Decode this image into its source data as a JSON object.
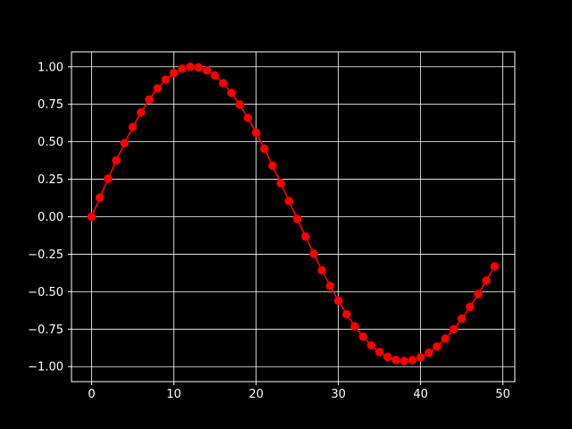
{
  "chart_data": {
    "type": "line",
    "title": "",
    "xlabel": "",
    "ylabel": "",
    "xlim": [
      -2.45,
      51.45
    ],
    "ylim": [
      -1.1,
      1.1
    ],
    "grid": true,
    "x_ticks": [
      0,
      10,
      20,
      30,
      40,
      50
    ],
    "x_tick_labels": [
      "0",
      "10",
      "20",
      "30",
      "40",
      "50"
    ],
    "y_ticks": [
      1.0,
      0.75,
      0.5,
      0.25,
      0.0,
      -0.25,
      -0.5,
      -0.75,
      -1.0
    ],
    "y_tick_labels": [
      "1.00",
      "0.75",
      "0.50",
      "0.25",
      "0.00",
      "−0.25",
      "−0.50",
      "−0.75",
      "−1.00"
    ],
    "series": [
      {
        "marker": "circle",
        "x": [
          0,
          1,
          2,
          3,
          4,
          5,
          6,
          7,
          8,
          9,
          10,
          11,
          12,
          13,
          14,
          15,
          16,
          17,
          18,
          19,
          20,
          21,
          22,
          23,
          24,
          25,
          26,
          27,
          28,
          29,
          30,
          31,
          32,
          33,
          34,
          35,
          36,
          37,
          38,
          39,
          40,
          41,
          42,
          43,
          44,
          45,
          46,
          47,
          48,
          49
        ],
        "y": [
          0.0,
          0.1279,
          0.2537,
          0.3753,
          0.4907,
          0.5981,
          0.6957,
          0.7818,
          0.8551,
          0.9143,
          0.9587,
          0.9874,
          1.0,
          0.9965,
          0.9768,
          0.9414,
          0.8908,
          0.8262,
          0.7485,
          0.6593,
          0.5602,
          0.4532,
          0.3401,
          0.2232,
          0.1045,
          -0.0142,
          -0.1319,
          -0.2469,
          -0.357,
          -0.4618,
          -0.5602,
          -0.6504,
          -0.7307,
          -0.8,
          -0.8576,
          -0.9029,
          -0.9355,
          -0.9554,
          -0.9625,
          -0.9566,
          -0.9382,
          -0.9078,
          -0.8659,
          -0.8134,
          -0.7511,
          -0.6801,
          -0.6014,
          -0.5162,
          -0.4258,
          -0.3316
        ]
      }
    ]
  },
  "colors": {
    "background": "#000000",
    "axes": "#ffffff",
    "grid": "#ffffff",
    "line": "#ff0000",
    "marker_edge": "#cc0000",
    "text": "#ffffff"
  }
}
